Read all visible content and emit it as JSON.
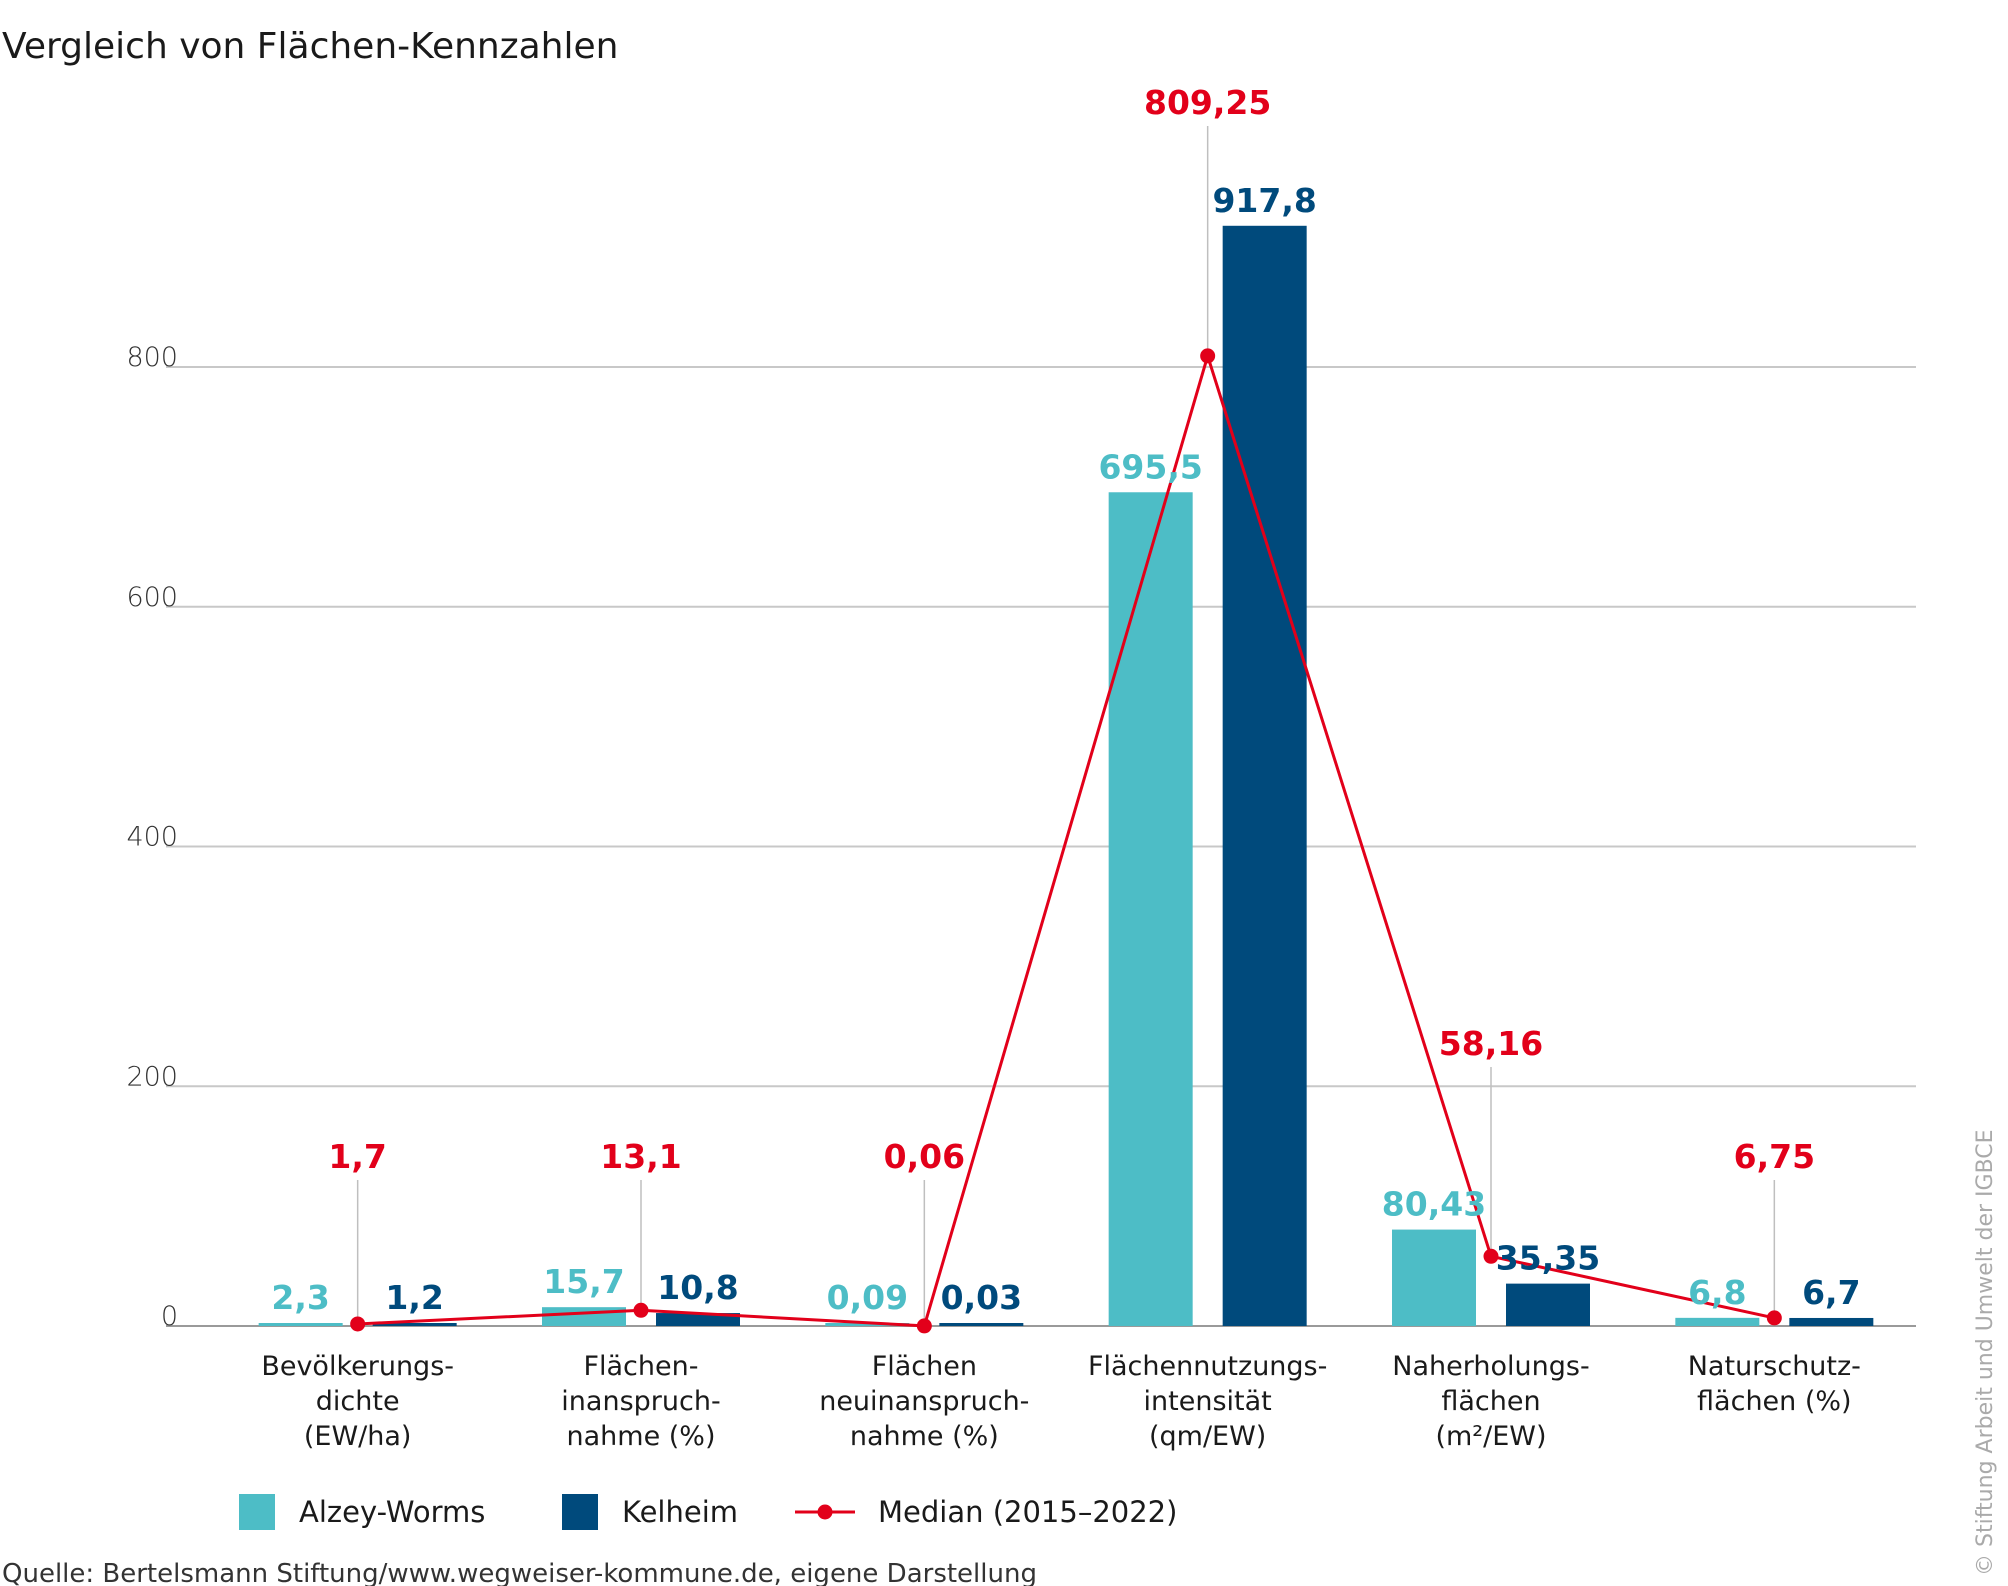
{
  "title": "Vergleich von Flächen-Kennzahlen",
  "source": "Quelle: Bertelsmann Stiftung/www.wegweiser-kommune.de, eigene Darstellung",
  "copyright": "© Stiftung Arbeit und Umwelt der IGBCE",
  "colors": {
    "alzey": "#4dbdc6",
    "kelheim": "#004a7c",
    "median": "#e2001a",
    "grid": "#c8c8c8",
    "leader": "#bfbfbf"
  },
  "chart_data": {
    "type": "bar",
    "categories": [
      [
        "Bevölkerungs-",
        "dichte",
        "(EW/ha)"
      ],
      [
        "Flächen-",
        "inanspruch-",
        "nahme (%)"
      ],
      [
        "Flächen",
        "neuinanspruch-",
        "nahme (%)"
      ],
      [
        "Flächennutzungs-",
        "intensität",
        "(qm/EW)"
      ],
      [
        "Naherholungs-",
        "flächen",
        "(m²/EW)"
      ],
      [
        "Naturschutz-",
        "flächen (%)"
      ]
    ],
    "series": [
      {
        "name": "Alzey-Worms",
        "type": "bar",
        "values": [
          2.3,
          15.7,
          0.09,
          695.5,
          80.43,
          6.8
        ],
        "labels": [
          "2,3",
          "15,7",
          "0,09",
          "695,5",
          "80,43",
          "6,8"
        ]
      },
      {
        "name": "Kelheim",
        "type": "bar",
        "values": [
          1.2,
          10.8,
          0.03,
          917.8,
          35.35,
          6.7
        ],
        "labels": [
          "1,2",
          "10,8",
          "0,03",
          "917,8",
          "35,35",
          "6,7"
        ]
      },
      {
        "name": "Median (2015–2022)",
        "type": "line",
        "values": [
          1.7,
          13.1,
          0.06,
          809.25,
          58.16,
          6.75
        ],
        "labels": [
          "1,7",
          "13,1",
          "0,06",
          "809,25",
          "58,16",
          "6,75"
        ]
      }
    ],
    "yticks": [
      0,
      200,
      400,
      600,
      800
    ],
    "ylim": [
      0,
      1000
    ],
    "grid": true,
    "legend": "bottom-left"
  }
}
